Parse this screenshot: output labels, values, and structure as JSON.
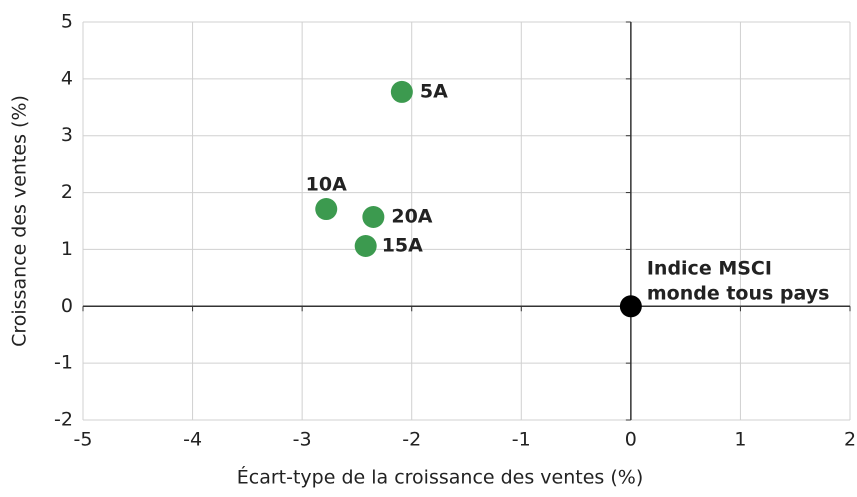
{
  "chart_data": {
    "type": "scatter",
    "x_label": "Écart-type de la croissance des ventes (%)",
    "y_label": "Croissance des ventes (%)",
    "xlim": [
      -5,
      2
    ],
    "xticks": [
      -5,
      -4,
      -3,
      -2,
      -1,
      0,
      1,
      2
    ],
    "ylim": [
      -2,
      5
    ],
    "yticks": [
      -2,
      -1,
      0,
      1,
      2,
      3,
      4,
      5
    ],
    "grid": true,
    "series": [
      {
        "name": "5A",
        "color": "#3c9a4f",
        "x": [
          -2.09
        ],
        "values": [
          3.77
        ]
      },
      {
        "name": "10A",
        "color": "#3c9a4f",
        "x": [
          -2.78
        ],
        "values": [
          1.71
        ]
      },
      {
        "name": "20A",
        "color": "#3c9a4f",
        "x": [
          -2.35
        ],
        "values": [
          1.57
        ]
      },
      {
        "name": "15A",
        "color": "#3c9a4f",
        "x": [
          -2.42
        ],
        "values": [
          1.06
        ]
      },
      {
        "name": [
          "Indice MSCI",
          "monde tous pays"
        ],
        "color": "#000000",
        "x": [
          0
        ],
        "values": [
          0
        ]
      }
    ]
  }
}
